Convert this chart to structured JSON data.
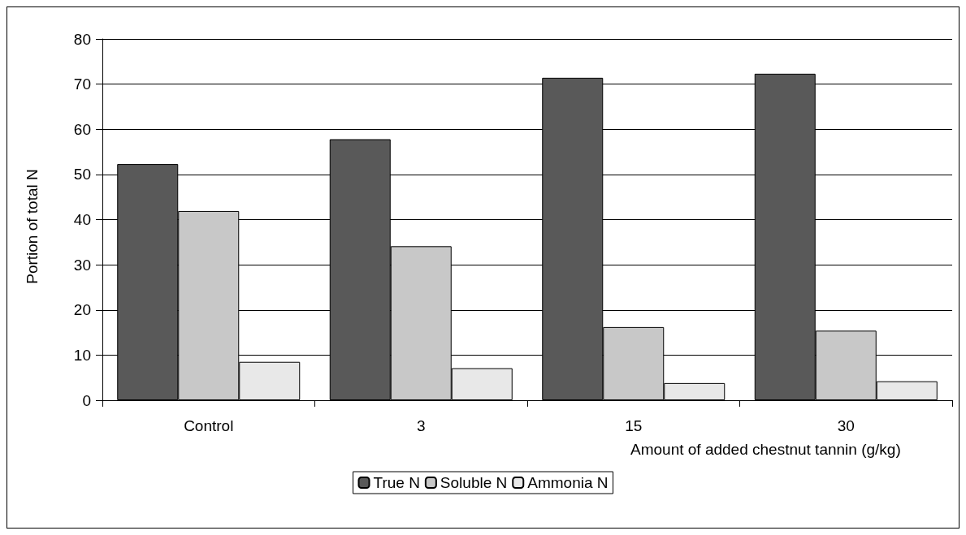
{
  "chart_data": {
    "type": "bar",
    "xlabel": "Amount of added chestnut tannin (g/kg)",
    "ylabel": "Portion of total N",
    "categories": [
      "Control",
      "3",
      "15",
      "30"
    ],
    "series": [
      {
        "name": "True N",
        "color": "#595959",
        "values": [
          52.3,
          57.8,
          71.4,
          72.3
        ]
      },
      {
        "name": "Soluble N",
        "color": "#c8c8c8",
        "values": [
          41.9,
          34.1,
          16.2,
          15.4
        ]
      },
      {
        "name": "Ammonia N",
        "color": "#e8e8e8",
        "values": [
          8.5,
          7.1,
          3.8,
          4.2
        ]
      }
    ],
    "ylim": [
      0,
      80
    ],
    "yticks": [
      0,
      10,
      20,
      30,
      40,
      50,
      60,
      70,
      80
    ],
    "grid": "y",
    "legend": "bottom"
  }
}
